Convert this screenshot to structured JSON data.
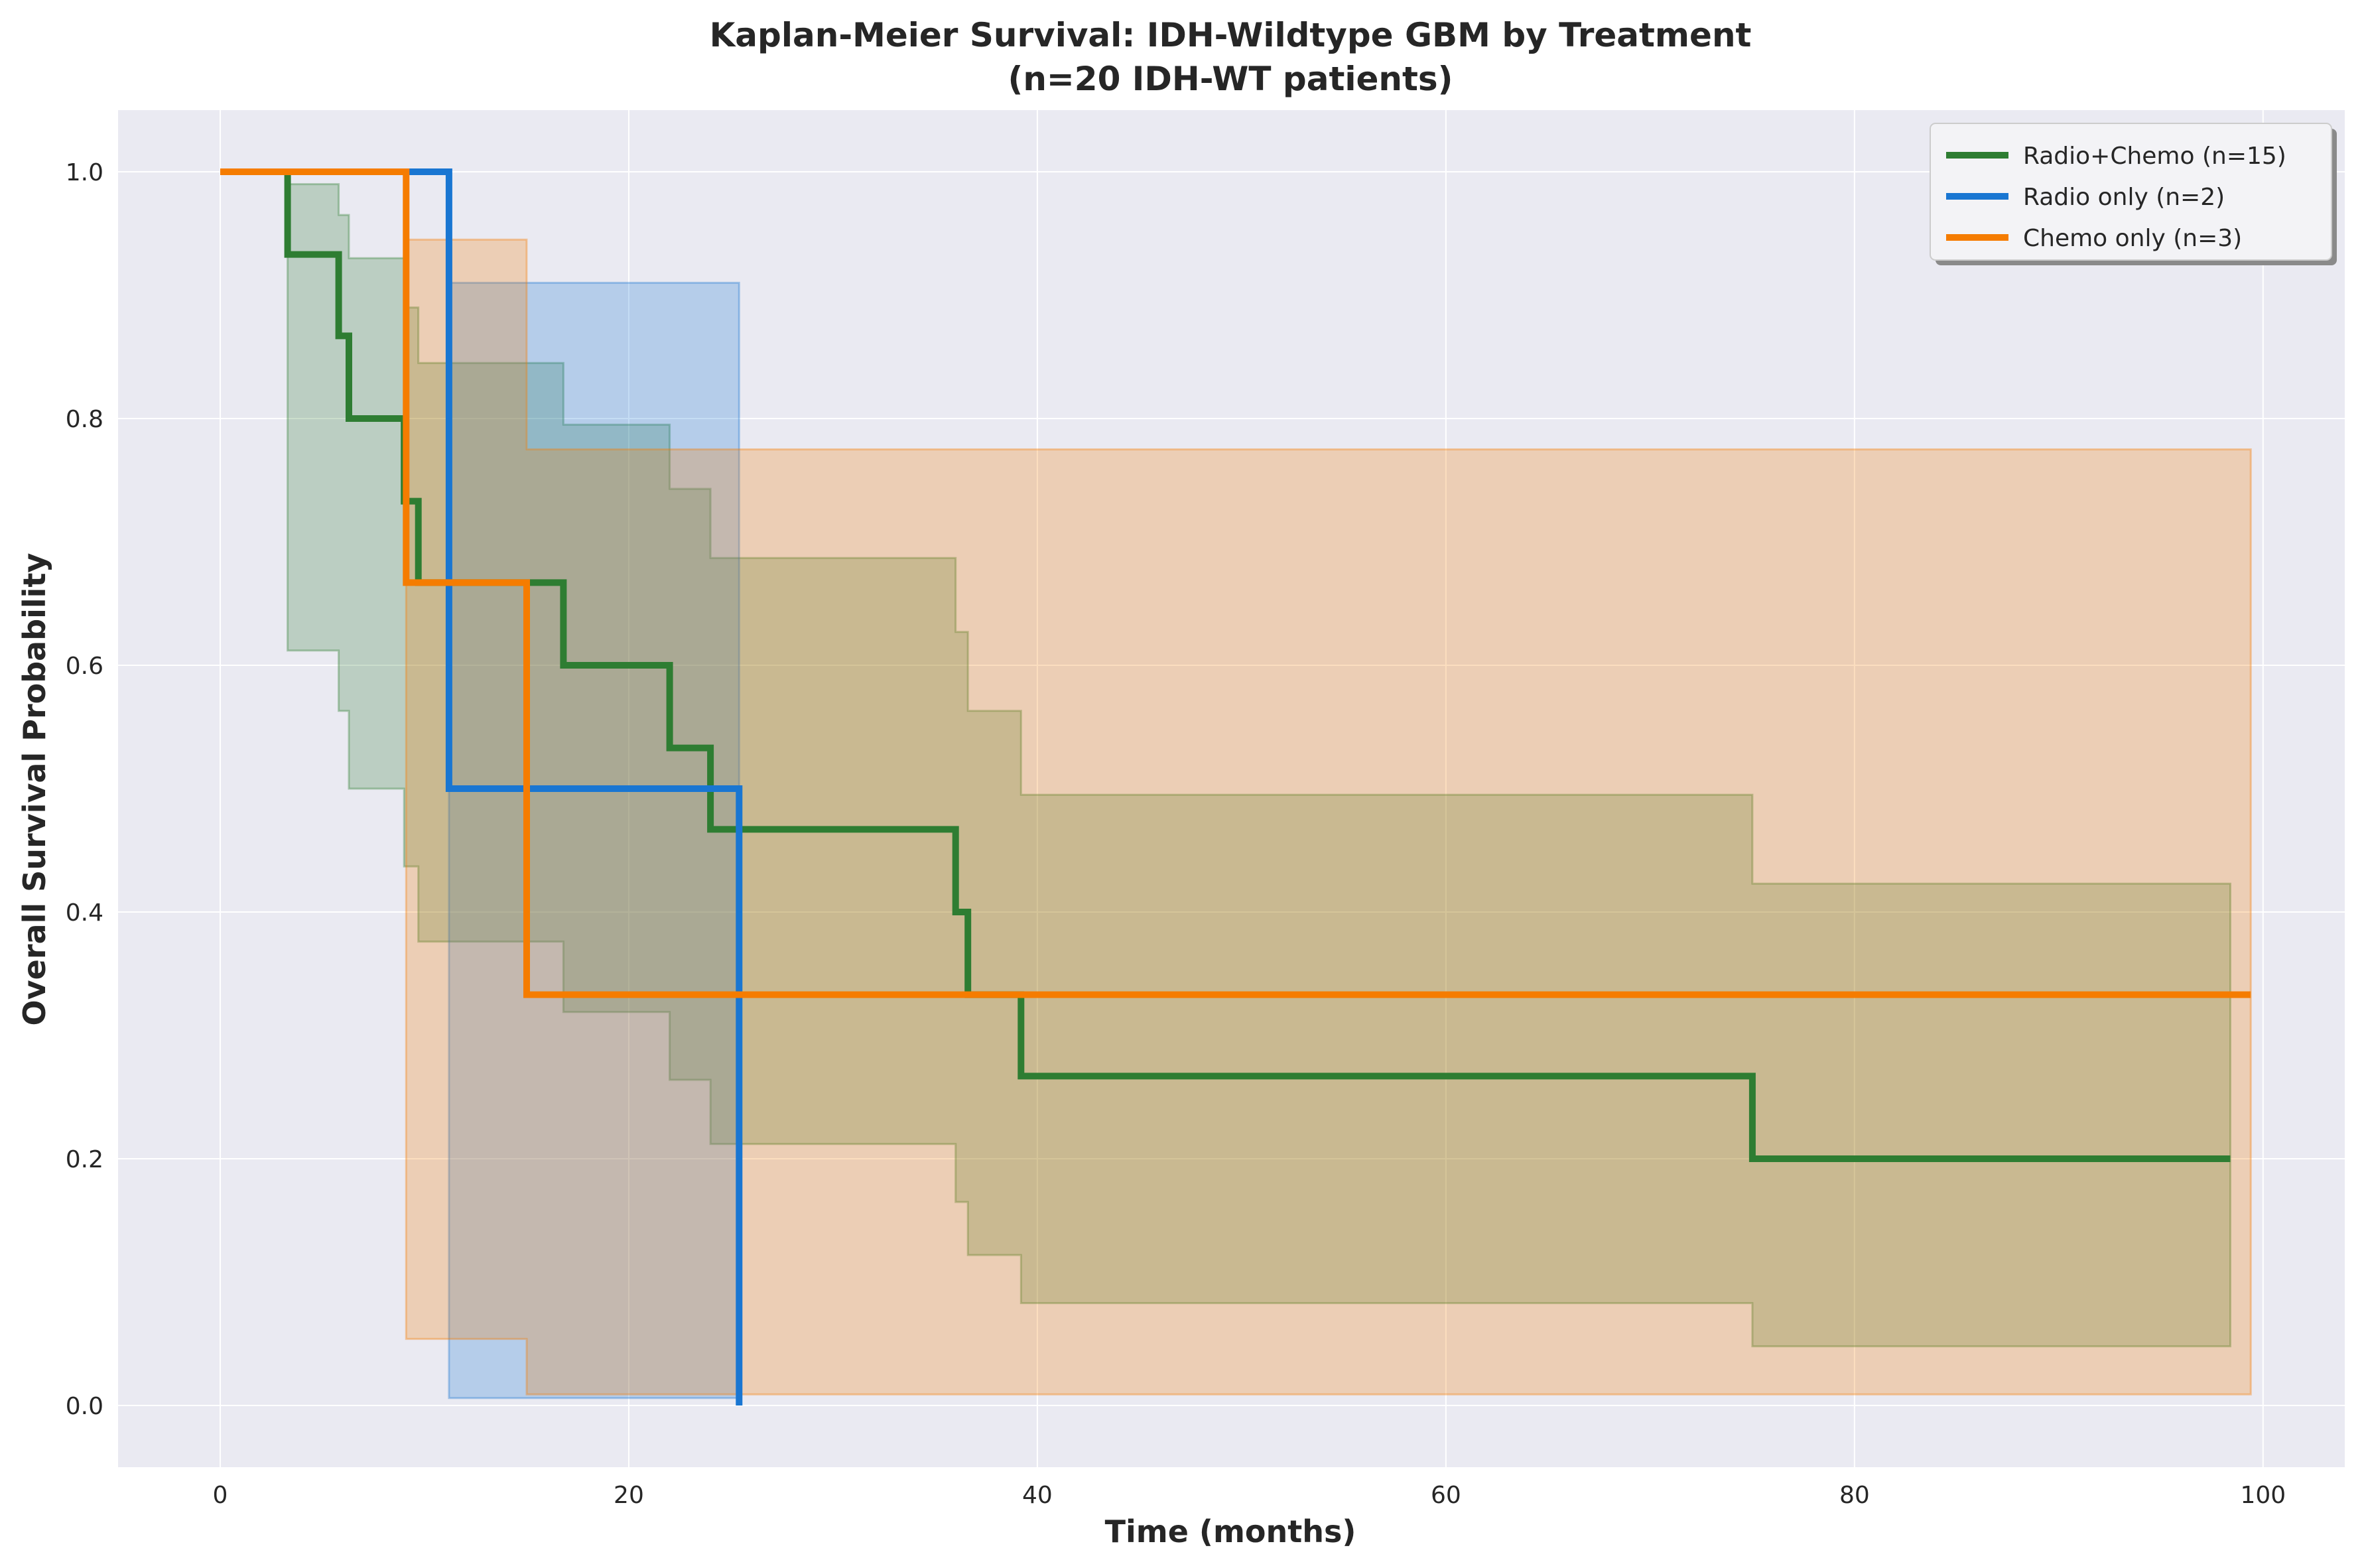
{
  "chart_data": {
    "type": "line",
    "subtype": "step",
    "title": "Kaplan-Meier Survival: IDH-Wildtype GBM by Treatment",
    "subtitle": "(n=20 IDH-WT patients)",
    "xlabel": "Time (months)",
    "ylabel": "Overall Survival Probability",
    "xlim": [
      -5,
      104
    ],
    "ylim": [
      -0.05,
      1.05
    ],
    "xticks": [
      0,
      20,
      40,
      60,
      80,
      100
    ],
    "xtick_labels": [
      "0",
      "20",
      "40",
      "60",
      "80",
      "100"
    ],
    "yticks": [
      0.0,
      0.2,
      0.4,
      0.6,
      0.8,
      1.0
    ],
    "ytick_labels": [
      "0.0",
      "0.2",
      "0.4",
      "0.6",
      "0.8",
      "1.0"
    ],
    "grid": true,
    "legend_position": "top-right",
    "background": "#eaeaf2",
    "series": [
      {
        "name": "Radio+Chemo (n=15)",
        "color": "#2e7d32",
        "x": [
          0,
          3.3,
          5.8,
          6.3,
          9.0,
          9.7,
          16.8,
          22.0,
          24.0,
          36.0,
          36.6,
          39.2,
          75.0,
          98.4
        ],
        "y": [
          1.0,
          0.933,
          0.867,
          0.8,
          0.733,
          0.667,
          0.6,
          0.533,
          0.467,
          0.4,
          0.333,
          0.267,
          0.2,
          0.2
        ],
        "ci_upper": [
          1.0,
          0.99,
          0.965,
          0.93,
          0.89,
          0.845,
          0.795,
          0.743,
          0.687,
          0.627,
          0.563,
          0.495,
          0.423,
          0.423
        ],
        "ci_lower": [
          1.0,
          0.612,
          0.563,
          0.5,
          0.437,
          0.376,
          0.319,
          0.264,
          0.212,
          0.165,
          0.122,
          0.083,
          0.048,
          0.048
        ]
      },
      {
        "name": "Radio only (n=2)",
        "color": "#1976d2",
        "x": [
          0,
          11.2,
          25.4,
          25.4
        ],
        "y": [
          1.0,
          0.5,
          0.0,
          0.0
        ],
        "ci_upper": [
          1.0,
          0.91,
          0.91,
          0.91
        ],
        "ci_lower": [
          1.0,
          0.006,
          0.006,
          0.006
        ]
      },
      {
        "name": "Chemo only (n=3)",
        "color": "#f57c00",
        "x": [
          0,
          9.1,
          15.0,
          99.4
        ],
        "y": [
          1.0,
          0.667,
          0.333,
          0.333
        ],
        "ci_upper": [
          1.0,
          0.945,
          0.775,
          0.775
        ],
        "ci_lower": [
          1.0,
          0.054,
          0.009,
          0.009
        ]
      }
    ]
  }
}
